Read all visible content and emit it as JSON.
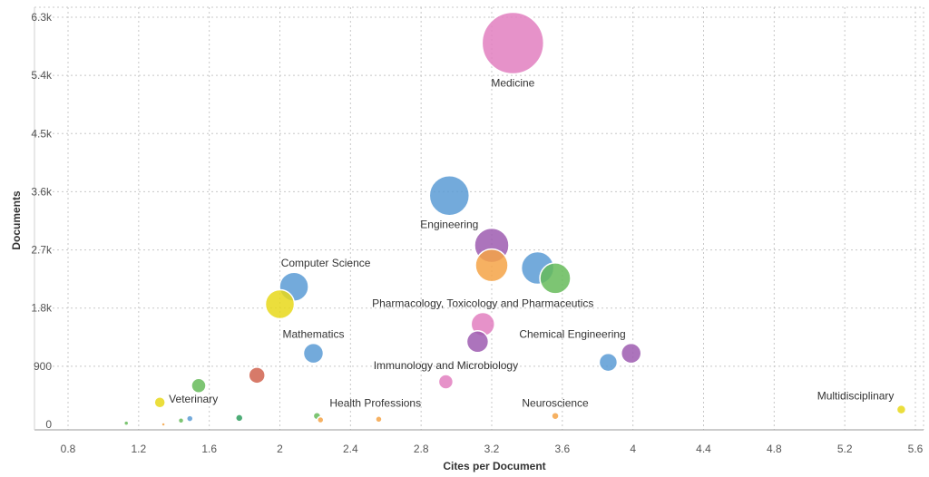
{
  "chart_data": {
    "type": "scatter",
    "title": "",
    "xlabel": "Cites per Document",
    "ylabel": "Documents",
    "xlim": [
      0.7,
      5.6
    ],
    "ylim": [
      -80,
      6300
    ],
    "x_ticks": [
      0.8,
      1.2,
      1.6,
      2,
      2.4,
      2.8,
      3.2,
      3.6,
      4,
      4.4,
      4.8,
      5.2,
      5.6
    ],
    "x_tick_labels": [
      "0.8",
      "1.2",
      "1.6",
      "2",
      "2.4",
      "2.8",
      "3.2",
      "3.6",
      "4",
      "4.4",
      "4.8",
      "5.2",
      "5.6"
    ],
    "y_ticks": [
      0,
      900,
      1800,
      2700,
      3600,
      4500,
      5400,
      6300
    ],
    "y_tick_labels": [
      "0",
      "900",
      "1.8k",
      "2.7k",
      "3.6k",
      "4.5k",
      "5.4k",
      "6.3k"
    ],
    "grid": true,
    "legend": "none",
    "points": [
      {
        "label": "Medicine",
        "x": 3.32,
        "y": 5900,
        "size": 34,
        "color": "#e27fbf"
      },
      {
        "label": "Engineering",
        "x": 2.96,
        "y": 3540,
        "size": 22,
        "color": "#5b9bd5"
      },
      {
        "label": "",
        "x": 3.2,
        "y": 2770,
        "size": 19,
        "color": "#9e5cb0"
      },
      {
        "label": "",
        "x": 3.2,
        "y": 2460,
        "size": 18,
        "color": "#f5a347"
      },
      {
        "label": "",
        "x": 3.46,
        "y": 2420,
        "size": 18,
        "color": "#5b9bd5"
      },
      {
        "label": "",
        "x": 3.56,
        "y": 2260,
        "size": 17,
        "color": "#66bb5a"
      },
      {
        "label": "Computer Science",
        "x": 2.08,
        "y": 2130,
        "size": 16,
        "color": "#5b9bd5"
      },
      {
        "label": "",
        "x": 2.0,
        "y": 1860,
        "size": 16,
        "color": "#e8d81a"
      },
      {
        "label": "Pharmacology, Toxicology and Pharmaceutics",
        "x": 3.15,
        "y": 1550,
        "size": 13,
        "color": "#e27fbf"
      },
      {
        "label": "",
        "x": 3.12,
        "y": 1280,
        "size": 12,
        "color": "#9e5cb0"
      },
      {
        "label": "Mathematics",
        "x": 2.19,
        "y": 1100,
        "size": 11,
        "color": "#5b9bd5"
      },
      {
        "label": "Chemical Engineering",
        "x": 3.99,
        "y": 1100,
        "size": 11,
        "color": "#9e5cb0"
      },
      {
        "label": "",
        "x": 3.86,
        "y": 960,
        "size": 10,
        "color": "#5b9bd5"
      },
      {
        "label": "",
        "x": 1.87,
        "y": 760,
        "size": 9,
        "color": "#d0634f"
      },
      {
        "label": "Immunology and Microbiology",
        "x": 2.94,
        "y": 660,
        "size": 8,
        "color": "#e27fbf"
      },
      {
        "label": "",
        "x": 1.54,
        "y": 600,
        "size": 8,
        "color": "#66bb5a"
      },
      {
        "label": "Veterinary",
        "x": 1.32,
        "y": 340,
        "size": 6,
        "color": "#e8d81a"
      },
      {
        "label": "Multidisciplinary",
        "x": 5.52,
        "y": 230,
        "size": 5,
        "color": "#e8d81a"
      },
      {
        "label": "Neuroscience",
        "x": 3.56,
        "y": 130,
        "size": 4,
        "color": "#f5a347"
      },
      {
        "label": "Health Professions",
        "x": 2.21,
        "y": 130,
        "size": 4,
        "color": "#66bb5a"
      },
      {
        "label": "",
        "x": 2.23,
        "y": 70,
        "size": 3.5,
        "color": "#f5a347"
      },
      {
        "label": "",
        "x": 2.56,
        "y": 80,
        "size": 3.5,
        "color": "#f5a347"
      },
      {
        "label": "",
        "x": 1.77,
        "y": 100,
        "size": 4,
        "color": "#2e9e5e"
      },
      {
        "label": "",
        "x": 1.49,
        "y": 90,
        "size": 3.5,
        "color": "#5b9bd5"
      },
      {
        "label": "",
        "x": 1.44,
        "y": 60,
        "size": 3,
        "color": "#66bb5a"
      },
      {
        "label": "",
        "x": 1.13,
        "y": 20,
        "size": 2.5,
        "color": "#66bb5a"
      },
      {
        "label": "",
        "x": 1.34,
        "y": 0,
        "size": 2,
        "color": "#f5a347"
      }
    ]
  }
}
